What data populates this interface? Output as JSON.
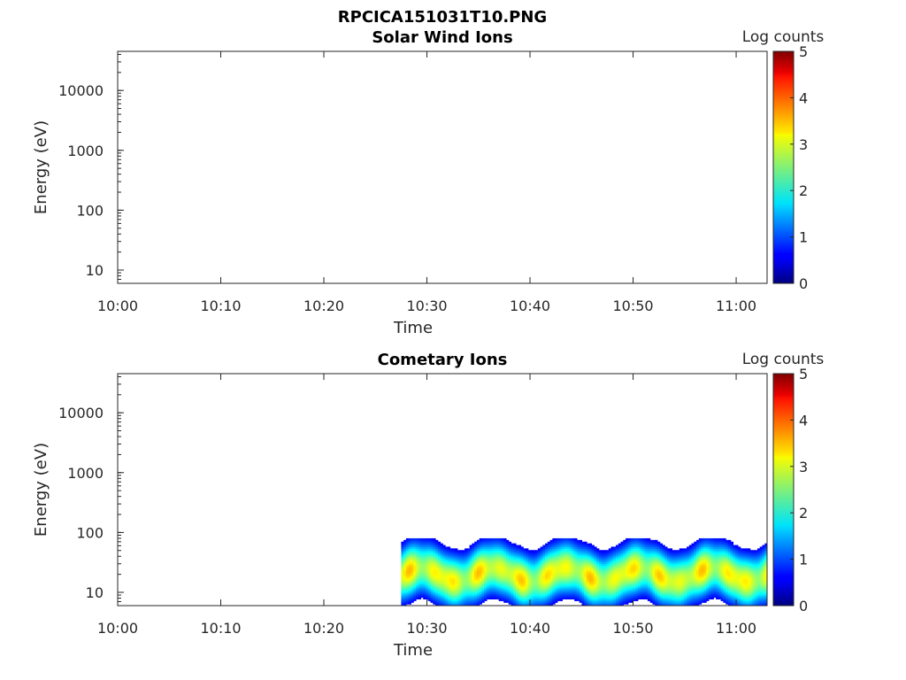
{
  "figure": {
    "title": "RPCICA151031T10.PNG"
  },
  "chart_data": [
    {
      "type": "heatmap",
      "title": "Solar Wind Ions",
      "xlabel": "Time",
      "ylabel": "Energy (eV)",
      "x_ticks": [
        "10:00",
        "10:10",
        "10:20",
        "10:30",
        "10:40",
        "10:50",
        "11:00"
      ],
      "x_range": [
        "10:00",
        "11:03"
      ],
      "y_scale": "log",
      "y_ticks": [
        "10",
        "100",
        "1000",
        "10000"
      ],
      "y_range": [
        6,
        45000
      ],
      "colorbar": {
        "label": "Log counts",
        "range": [
          0,
          5
        ],
        "ticks": [
          "0",
          "1",
          "2",
          "3",
          "4",
          "5"
        ],
        "colormap": "jet"
      },
      "data": "empty"
    },
    {
      "type": "heatmap",
      "title": "Cometary Ions",
      "xlabel": "Time",
      "ylabel": "Energy (eV)",
      "x_ticks": [
        "10:00",
        "10:10",
        "10:20",
        "10:30",
        "10:40",
        "10:50",
        "11:00"
      ],
      "x_range": [
        "10:00",
        "11:03"
      ],
      "y_scale": "log",
      "y_ticks": [
        "10",
        "100",
        "1000",
        "10000"
      ],
      "y_range": [
        6,
        45000
      ],
      "colorbar": {
        "label": "Log counts",
        "range": [
          0,
          5
        ],
        "ticks": [
          "0",
          "1",
          "2",
          "3",
          "4",
          "5"
        ],
        "colormap": "jet"
      },
      "data": {
        "time_start": "10:27:30",
        "time_end": "11:03",
        "energy_min_ev": 6,
        "energy_max_ev": 80,
        "peak_energy_ev": 20,
        "peak_log_counts": 3.5
      }
    }
  ]
}
